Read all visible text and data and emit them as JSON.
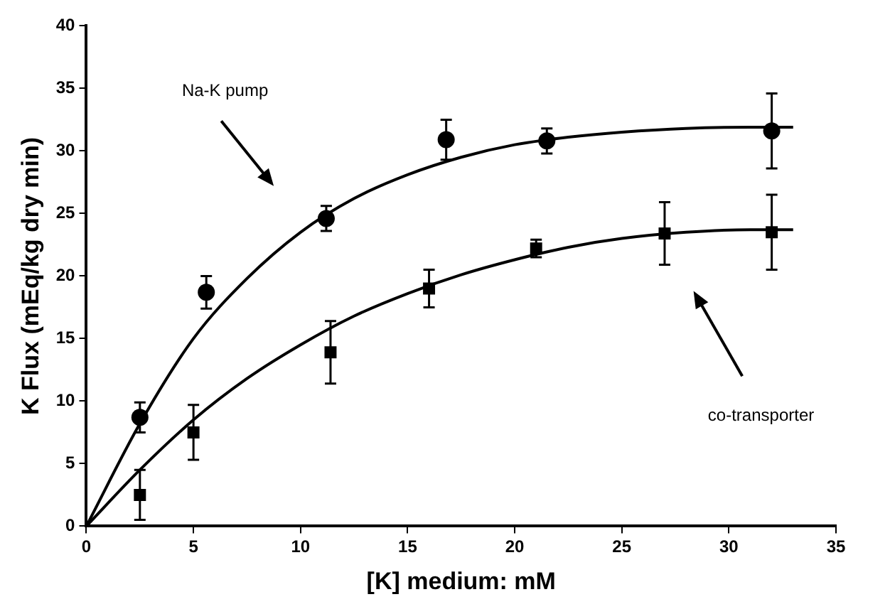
{
  "chart_data": {
    "type": "scatter",
    "xlabel": "[K] medium: mM",
    "ylabel": "K Flux (mEq/kg dry min)",
    "xlim": [
      0,
      35
    ],
    "xticks": [
      0,
      5,
      10,
      15,
      20,
      25,
      30,
      35
    ],
    "ylim": [
      0,
      40
    ],
    "yticks": [
      0,
      5,
      10,
      15,
      20,
      25,
      30,
      35,
      40
    ],
    "grid": false,
    "legend": false,
    "series": [
      {
        "type": "line",
        "marker": "none",
        "color": "#000000",
        "x": [
          0,
          2.5,
          5,
          7.5,
          10,
          12.5,
          15,
          17.5,
          20,
          22.5,
          25,
          28,
          31,
          33
        ],
        "values": [
          0,
          8.2,
          15,
          19.8,
          23.5,
          26.2,
          28.1,
          29.5,
          30.5,
          31.1,
          31.5,
          31.8,
          31.9,
          31.9
        ]
      },
      {
        "type": "line",
        "marker": "none",
        "color": "#000000",
        "x": [
          0,
          2.5,
          5,
          7.5,
          10,
          12.5,
          15,
          17.5,
          20,
          22.5,
          25,
          28,
          31,
          33
        ],
        "values": [
          0,
          4.5,
          8.5,
          11.8,
          14.5,
          16.8,
          18.6,
          20.1,
          21.3,
          22.3,
          23,
          23.5,
          23.7,
          23.7
        ]
      },
      {
        "marker": "circle",
        "color": "#000000",
        "x": [
          2.5,
          5.6,
          11.2,
          16.8,
          21.5,
          32
        ],
        "values": [
          8.7,
          18.7,
          24.6,
          30.9,
          30.8,
          31.6
        ],
        "errors": [
          1.2,
          1.3,
          1,
          1.6,
          1,
          3
        ]
      },
      {
        "marker": "square",
        "color": "#000000",
        "x": [
          2.5,
          5,
          11.4,
          16,
          21,
          27,
          32
        ],
        "values": [
          2.5,
          7.5,
          13.9,
          19,
          22.2,
          23.4,
          23.5
        ],
        "errors": [
          2,
          2.2,
          2.5,
          1.5,
          0.7,
          2.5,
          3
        ]
      }
    ],
    "annotations": [
      "Na-K pump",
      "co-transporter"
    ]
  }
}
